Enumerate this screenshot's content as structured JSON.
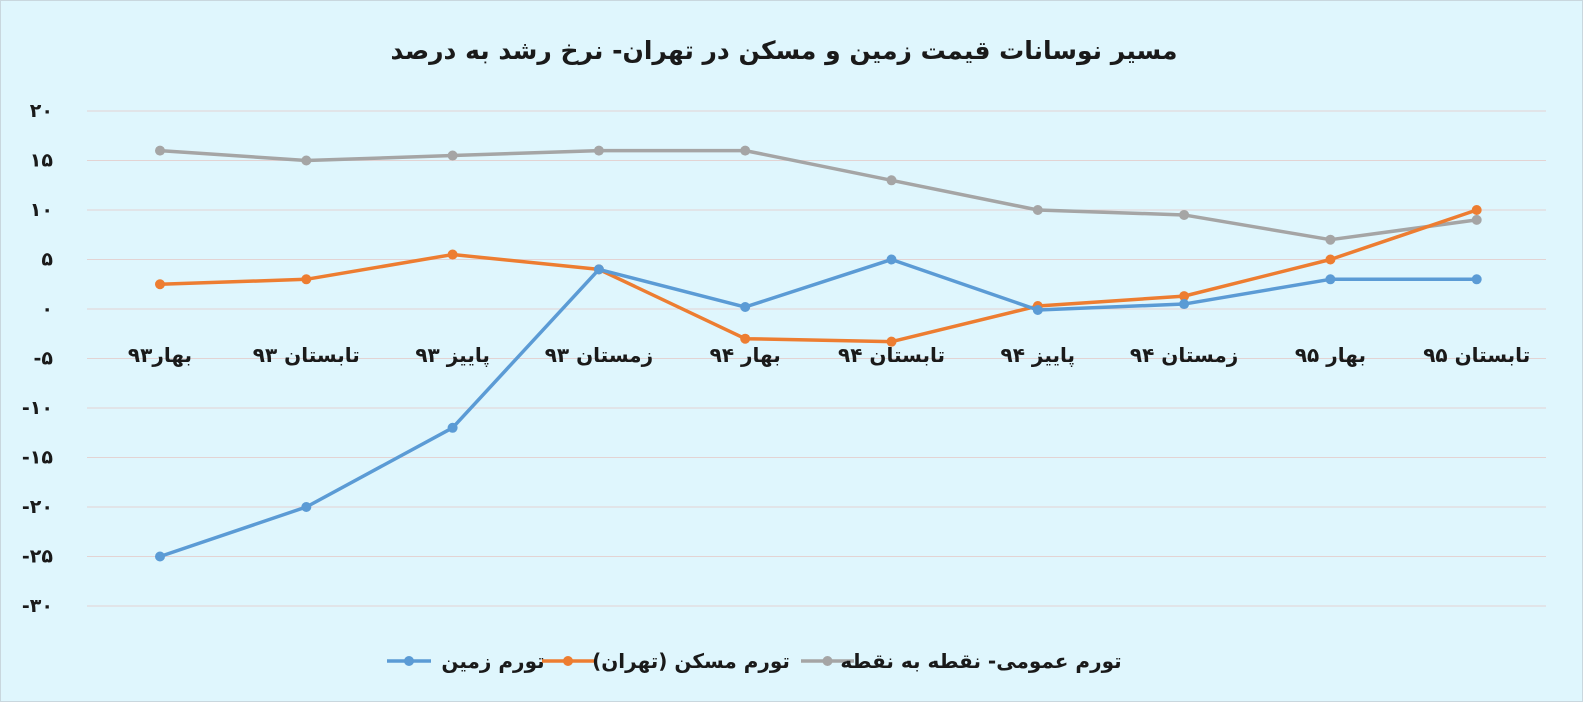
{
  "chart_data": {
    "type": "line",
    "title": "مسیر نوسانات قیمت زمین و مسکن در تهران- نرخ رشد به درصد",
    "xlabel": "",
    "ylabel": "",
    "categories": [
      "بهار۹۳",
      "تابستان ۹۳",
      "پاییز ۹۳",
      "زمستان ۹۳",
      "بهار ۹۴",
      "تابستان ۹۴",
      "پاییز ۹۴",
      "زمستان ۹۴",
      "بهار ۹۵",
      "تابستان ۹۵"
    ],
    "ylim": [
      -30,
      20
    ],
    "yticks": [
      20,
      15,
      10,
      5,
      0,
      -5,
      -10,
      -15,
      -20,
      -25,
      -30
    ],
    "ytick_labels": [
      "۲۰",
      "۱۵",
      "۱۰",
      "۵",
      "۰",
      "-۵",
      "-۱۰",
      "-۱۵",
      "-۲۰",
      "-۲۵",
      "-۳۰"
    ],
    "grid": true,
    "legend_position": "bottom",
    "series": [
      {
        "name": "تورم زمین",
        "color": "#5b9bd5",
        "values": [
          -25,
          -20,
          -12,
          4,
          0.2,
          5,
          -0.1,
          0.5,
          3,
          3
        ]
      },
      {
        "name": "تورم مسکن (تهران)",
        "color": "#ed7d31",
        "values": [
          2.5,
          3,
          5.5,
          4,
          -3,
          -3.3,
          0.3,
          1.3,
          5,
          10
        ]
      },
      {
        "name": "تورم عمومی- نقطه به نقطه",
        "color": "#a5a5a5",
        "values": [
          16,
          15,
          15.5,
          16,
          16,
          13,
          10,
          9.5,
          7,
          9
        ]
      }
    ]
  }
}
